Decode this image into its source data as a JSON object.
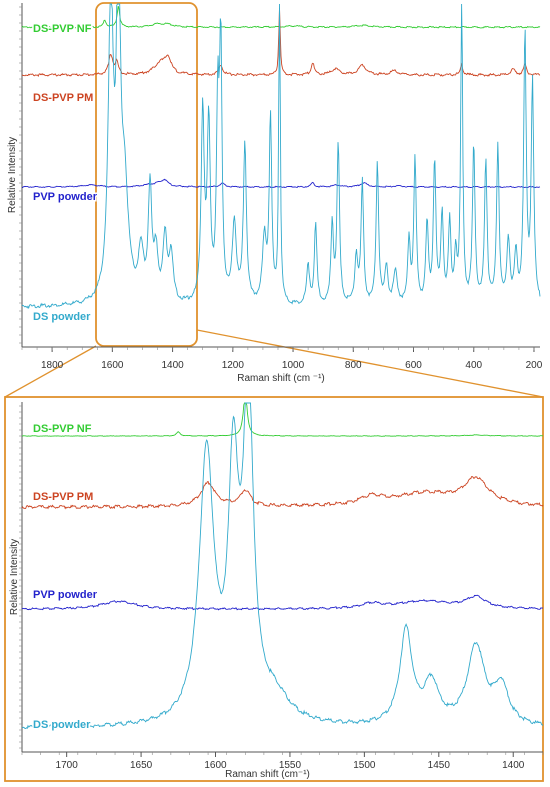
{
  "chart_data": [
    {
      "type": "line",
      "panel": "full-spectrum",
      "xlabel": "Raman shift (cm ⁻¹)",
      "ylabel": "Relative Intensity",
      "xlim": [
        1900,
        180
      ],
      "x_reversed": true,
      "x_ticks": [
        1800,
        1600,
        1400,
        1200,
        1000,
        800,
        600,
        400,
        200
      ],
      "series": [
        {
          "name": "DS-PVP NF",
          "color": "#33cc33",
          "baseline": 0.04,
          "peaks": [
            [
              1625,
              0.06,
              5
            ],
            [
              1580,
              0.18,
              5
            ],
            [
              1450,
              0.025,
              25
            ],
            [
              1415,
              0.02,
              20
            ],
            [
              1000,
              0.01,
              30
            ],
            [
              770,
              0.015,
              30
            ]
          ]
        },
        {
          "name": "DS-PVP PM",
          "color": "#cc4422",
          "baseline": 0.09,
          "peaks": [
            [
              1605,
              0.1,
              8
            ],
            [
              1585,
              0.06,
              6
            ],
            [
              1440,
              0.06,
              25
            ],
            [
              1415,
              0.07,
              12
            ],
            [
              1240,
              0.05,
              8
            ],
            [
              1045,
              0.34,
              3
            ],
            [
              935,
              0.06,
              6
            ],
            [
              860,
              0.03,
              15
            ],
            [
              770,
              0.05,
              15
            ],
            [
              665,
              0.02,
              15
            ],
            [
              440,
              0.05,
              5
            ],
            [
              270,
              0.03,
              8
            ],
            [
              230,
              0.05,
              6
            ]
          ]
        },
        {
          "name": "PVP powder",
          "color": "#2222cc",
          "baseline": 0.09,
          "peaks": [
            [
              1670,
              0.02,
              30
            ],
            [
              1480,
              0.015,
              25
            ],
            [
              1440,
              0.04,
              25
            ],
            [
              1425,
              0.045,
              10
            ],
            [
              1235,
              0.035,
              10
            ],
            [
              935,
              0.045,
              6
            ],
            [
              855,
              0.02,
              15
            ],
            [
              765,
              0.04,
              15
            ],
            [
              650,
              0.01,
              20
            ]
          ]
        },
        {
          "name": "DS powder",
          "color": "#33aacc",
          "baseline": 0.04,
          "peaks": [
            [
              1605,
              0.95,
              10
            ],
            [
              1580,
              1.05,
              7
            ],
            [
              1560,
              0.35,
              15
            ],
            [
              1505,
              0.15,
              10
            ],
            [
              1475,
              0.35,
              7
            ],
            [
              1455,
              0.15,
              8
            ],
            [
              1425,
              0.2,
              8
            ],
            [
              1405,
              0.15,
              8
            ],
            [
              1300,
              0.6,
              6
            ],
            [
              1280,
              0.55,
              6
            ],
            [
              1250,
              0.58,
              5
            ],
            [
              1240,
              0.78,
              5
            ],
            [
              1195,
              0.25,
              8
            ],
            [
              1160,
              0.5,
              6
            ],
            [
              1095,
              0.2,
              8
            ],
            [
              1075,
              0.58,
              5
            ],
            [
              1045,
              1.05,
              3
            ],
            [
              950,
              0.12,
              6
            ],
            [
              925,
              0.25,
              5
            ],
            [
              870,
              0.25,
              5
            ],
            [
              850,
              0.5,
              5
            ],
            [
              790,
              0.15,
              6
            ],
            [
              770,
              0.38,
              5
            ],
            [
              720,
              0.45,
              5
            ],
            [
              690,
              0.12,
              6
            ],
            [
              660,
              0.1,
              8
            ],
            [
              615,
              0.2,
              5
            ],
            [
              595,
              0.45,
              5
            ],
            [
              555,
              0.25,
              5
            ],
            [
              530,
              0.45,
              5
            ],
            [
              505,
              0.28,
              5
            ],
            [
              480,
              0.25,
              5
            ],
            [
              460,
              0.15,
              5
            ],
            [
              440,
              0.95,
              4
            ],
            [
              400,
              0.5,
              5
            ],
            [
              360,
              0.45,
              5
            ],
            [
              320,
              0.5,
              5
            ],
            [
              285,
              0.2,
              6
            ],
            [
              260,
              0.15,
              6
            ],
            [
              230,
              0.85,
              5
            ],
            [
              205,
              0.7,
              5
            ]
          ]
        }
      ]
    },
    {
      "type": "line",
      "panel": "zoom",
      "xlabel": "Raman shift (cm⁻¹)",
      "ylabel": "Relative Intensity",
      "xlim": [
        1730,
        1380
      ],
      "x_reversed": true,
      "x_ticks": [
        1700,
        1650,
        1600,
        1550,
        1500,
        1450,
        1400
      ],
      "series": [
        {
          "name": "DS-PVP NF",
          "color": "#33cc33",
          "baseline": 0.02,
          "peaks": [
            [
              1625,
              0.08,
              1.5
            ],
            [
              1580,
              0.9,
              1.5
            ],
            [
              1425,
              0.02,
              8
            ]
          ]
        },
        {
          "name": "DS-PVP PM",
          "color": "#cc4422",
          "baseline": 0.03,
          "peaks": [
            [
              1605,
              0.09,
              6
            ],
            [
              1580,
              0.06,
              4
            ],
            [
              1495,
              0.03,
              10
            ],
            [
              1460,
              0.05,
              25
            ],
            [
              1425,
              0.1,
              10
            ]
          ]
        },
        {
          "name": "PVP powder",
          "color": "#2222cc",
          "baseline": 0.01,
          "peaks": [
            [
              1665,
              0.05,
              14
            ],
            [
              1495,
              0.03,
              8
            ],
            [
              1460,
              0.05,
              22
            ],
            [
              1425,
              0.07,
              8
            ]
          ]
        },
        {
          "name": "DS powder",
          "color": "#33aacc",
          "baseline": 0.03,
          "peaks": [
            [
              1606,
              0.85,
              6
            ],
            [
              1588,
              0.75,
              4
            ],
            [
              1578,
              1.05,
              4
            ],
            [
              1560,
              0.08,
              12
            ],
            [
              1472,
              0.3,
              5
            ],
            [
              1455,
              0.13,
              6
            ],
            [
              1425,
              0.25,
              7
            ],
            [
              1408,
              0.12,
              6
            ]
          ]
        }
      ]
    }
  ]
}
